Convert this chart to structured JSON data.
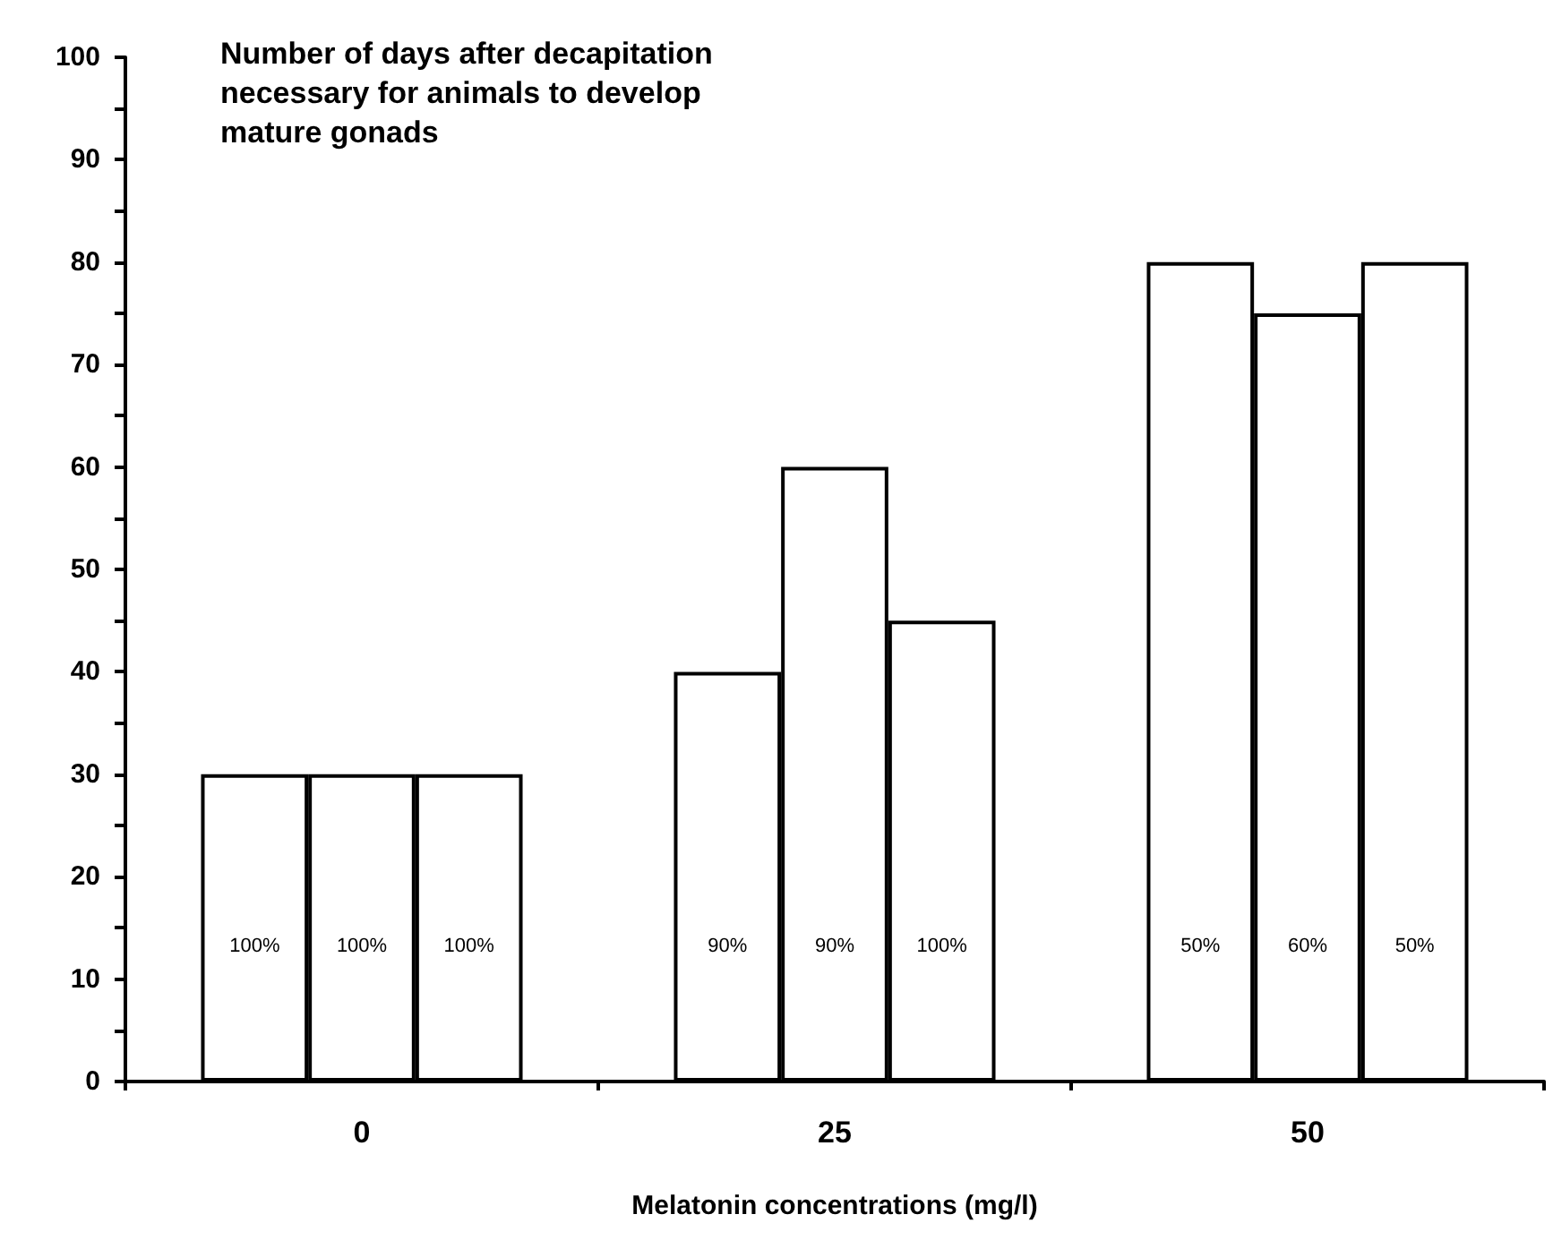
{
  "chart_data": {
    "type": "bar",
    "title": "Number of days after decapitation\nnecessary for animals to develop\nmature gonads",
    "xlabel": "Melatonin concentrations (mg/l)",
    "categories": [
      "0",
      "25",
      "50"
    ],
    "series": [
      {
        "color": "#ffffff",
        "values": [
          30,
          40,
          80
        ]
      },
      {
        "color": "#ffffff",
        "values": [
          30,
          60,
          75
        ]
      },
      {
        "color": "#ffffff",
        "values": [
          30,
          45,
          80
        ]
      }
    ],
    "annotations": [
      "100%",
      "100%",
      "100%",
      "90%",
      "90%",
      "100%",
      "50%",
      "60%",
      "50%"
    ],
    "ylim": [
      0,
      100
    ],
    "yticks": [
      0,
      {
        "value": 5,
        "label": null
      },
      10,
      {
        "value": 15,
        "label": null
      },
      20,
      {
        "value": 25,
        "label": null
      },
      30,
      {
        "value": 35,
        "label": null
      },
      40,
      {
        "value": 45,
        "label": null
      },
      50,
      {
        "value": 55,
        "label": null
      },
      60,
      {
        "value": 65,
        "label": null
      },
      70,
      {
        "value": 75,
        "label": null
      },
      80,
      {
        "value": 85,
        "label": null
      },
      90,
      {
        "value": 95,
        "label": null
      },
      100
    ],
    "grid": false
  }
}
